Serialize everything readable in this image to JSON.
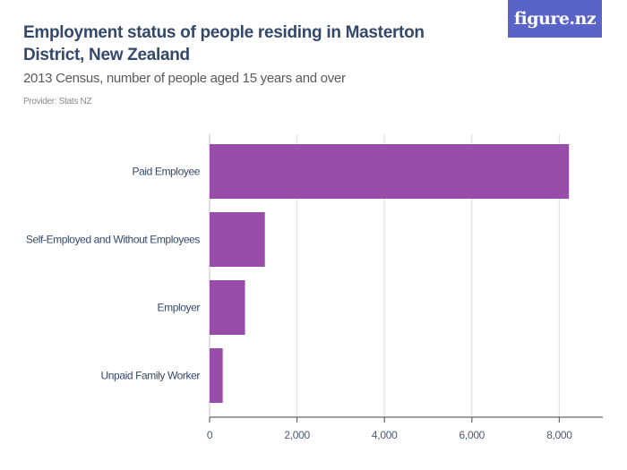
{
  "header": {
    "title": "Employment status of people residing in Masterton District, New Zealand",
    "subtitle": "2013 Census, number of people aged 15 years and over",
    "provider": "Provider: Stats NZ",
    "logo": "figure.nz"
  },
  "colors": {
    "bar": "#984ea9",
    "logo_bg": "#5a63c7",
    "title": "#34486a"
  },
  "chart_data": {
    "type": "bar",
    "orientation": "horizontal",
    "title": "Employment status of people residing in Masterton District, New Zealand",
    "subtitle": "2013 Census, number of people aged 15 years and over",
    "categories": [
      "Paid Employee",
      "Self-Employed and Without Employees",
      "Employer",
      "Unpaid Family Worker"
    ],
    "values": [
      8220,
      1265,
      810,
      300
    ],
    "xlabel": "",
    "ylabel": "",
    "xlim": [
      0,
      9000
    ],
    "xticks": [
      0,
      2000,
      4000,
      6000,
      8000
    ],
    "xtick_labels": [
      "0",
      "2,000",
      "4,000",
      "6,000",
      "8,000"
    ],
    "grid": true
  }
}
